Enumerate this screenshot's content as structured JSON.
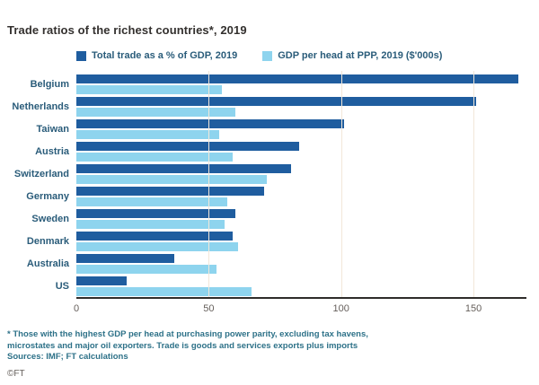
{
  "footnotes": {
    "line1": "* Those with the highest GDP per head at purchasing power parity, excluding tax havens,",
    "line2": "microstates and major oil exporters. Trade is goods and services exports plus imports",
    "source": "Sources: IMF; FT calculations",
    "copyright": "©FT"
  },
  "chart_data": {
    "type": "bar",
    "orientation": "horizontal",
    "title": "Trade ratios of the richest countries*, 2019",
    "categories": [
      "Belgium",
      "Netherlands",
      "Taiwan",
      "Austria",
      "Switzerland",
      "Germany",
      "Sweden",
      "Denmark",
      "Australia",
      "US"
    ],
    "series": [
      {
        "name": "Total trade as a % of GDP, 2019",
        "color": "#1f5d9f",
        "values": [
          167,
          151,
          101,
          84,
          81,
          71,
          60,
          59,
          37,
          19
        ]
      },
      {
        "name": "GDP per head at PPP, 2019 ($'000s)",
        "color": "#8ed4ee",
        "values": [
          55,
          60,
          54,
          59,
          72,
          57,
          56,
          61,
          53,
          66
        ]
      }
    ],
    "xlim": [
      0,
      170
    ],
    "xticks": [
      0,
      50,
      100,
      150
    ],
    "gridlines_at": [
      50,
      100,
      150
    ],
    "legend_position": "top",
    "grid": true
  }
}
